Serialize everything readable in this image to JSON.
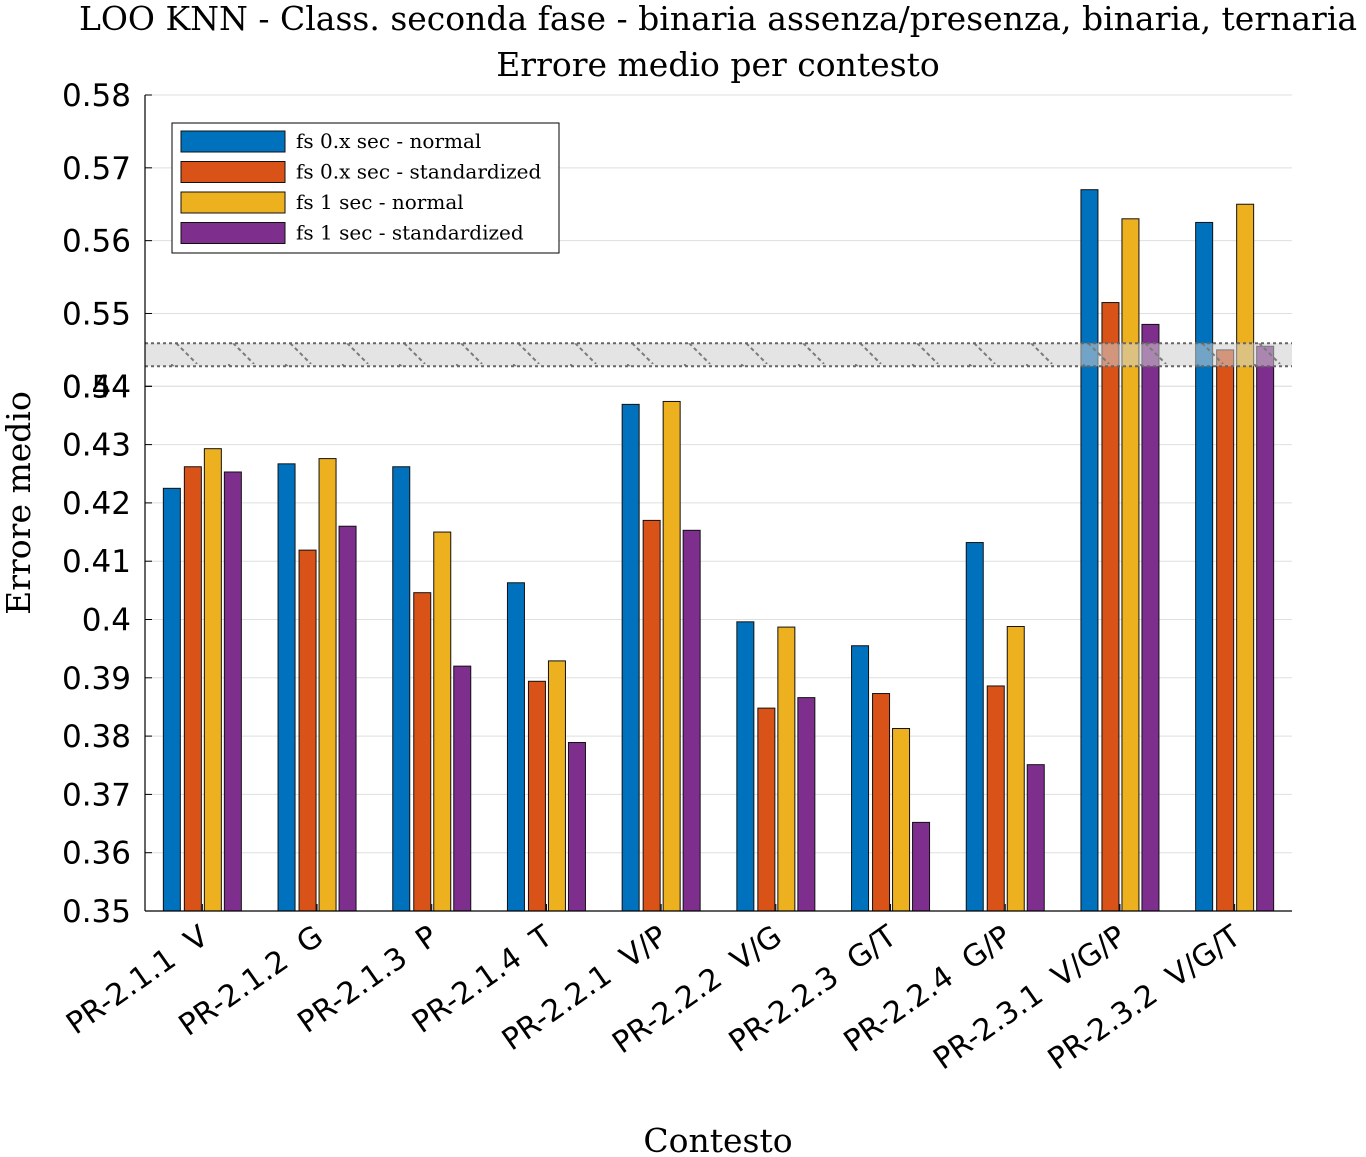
{
  "chart_data": {
    "type": "bar",
    "title": "LOO KNN - Class. seconda fase - binaria assenza/presenza, binaria, ternaria",
    "subtitle": "Errore medio per contesto",
    "xlabel": "Contesto",
    "ylabel": "Errore medio",
    "grid": true,
    "legend_position": "top-left",
    "axis_break": {
      "lower_segment_top": 0.44,
      "upper_segment_bottom": 0.54
    },
    "ylim_lower": [
      0.35,
      0.44
    ],
    "ylim_upper": [
      0.54,
      0.58
    ],
    "ytick_labels": [
      "0.35",
      "0.36",
      "0.37",
      "0.38",
      "0.39",
      "0.4",
      "0.41",
      "0.42",
      "0.43",
      "0.44",
      "0.54",
      "0.55",
      "0.56",
      "0.57",
      "0.58"
    ],
    "categories": [
      "PR-2.1.1  V",
      "PR-2.1.2  G",
      "PR-2.1.3  P",
      "PR-2.1.4  T",
      "PR-2.2.1  V/P",
      "PR-2.2.2  V/G",
      "PR-2.2.3  G/T",
      "PR-2.2.4  G/P",
      "PR-2.3.1  V/G/P",
      "PR-2.3.2  V/G/T"
    ],
    "series": [
      {
        "name": "fs 0.x sec - normal",
        "color": "#0072BD",
        "values": [
          0.4225,
          0.4267,
          0.4262,
          0.4063,
          0.4369,
          0.3996,
          0.3955,
          0.4132,
          0.567,
          0.5625
        ]
      },
      {
        "name": "fs 0.x sec - standardized",
        "color": "#D95319",
        "values": [
          0.4262,
          0.4119,
          0.4046,
          0.3894,
          0.417,
          0.3848,
          0.3873,
          0.3886,
          0.5515,
          0.545
        ]
      },
      {
        "name": "fs 1 sec - normal",
        "color": "#EDB120",
        "values": [
          0.4293,
          0.4276,
          0.415,
          0.3929,
          0.4374,
          0.3987,
          0.3813,
          0.3988,
          0.563,
          0.565
        ]
      },
      {
        "name": "fs 1 sec - standardized",
        "color": "#7E2F8E",
        "values": [
          0.4253,
          0.416,
          0.392,
          0.3789,
          0.4153,
          0.3866,
          0.3652,
          0.3751,
          0.5485,
          0.5455
        ]
      }
    ]
  }
}
